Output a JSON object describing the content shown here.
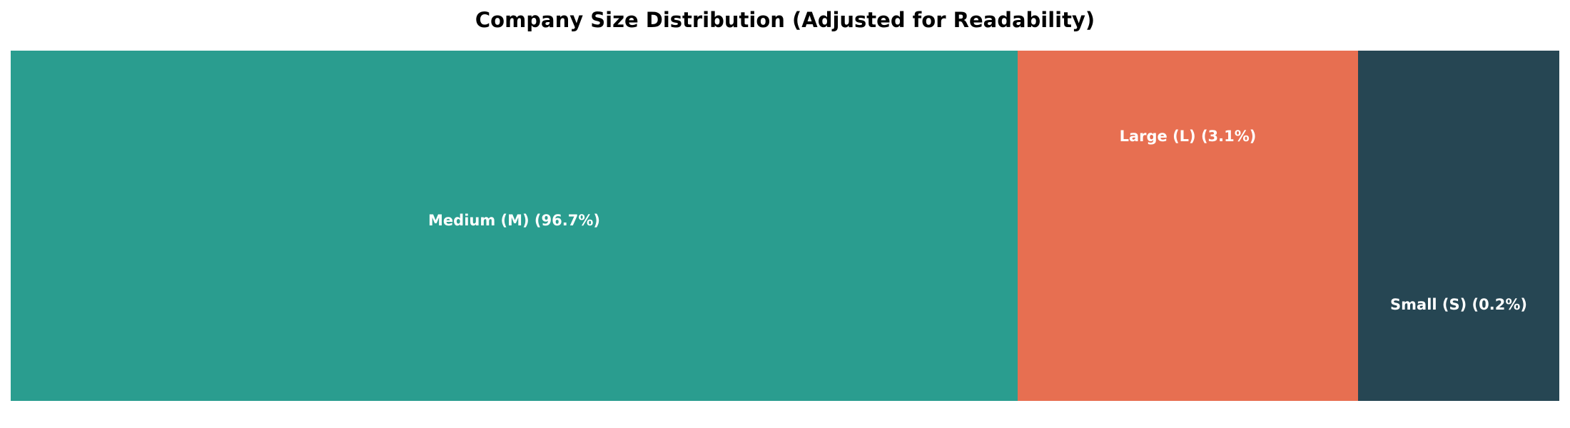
{
  "chart_data": {
    "type": "treemap",
    "title": "Company Size Distribution (Adjusted for Readability)",
    "segments": [
      {
        "name": "Medium (M)",
        "percent": 96.7,
        "label": "Medium (M) (96.7%)",
        "color": "#2a9d8f"
      },
      {
        "name": "Large (L)",
        "percent": 3.1,
        "label": "Large (L) (3.1%)",
        "color": "#e76f51"
      },
      {
        "name": "Small (S)",
        "percent": 0.2,
        "label": "Small (S) (0.2%)",
        "color": "#264653"
      }
    ],
    "display_widths_note": "Areas adjusted for readability; not proportional to percent"
  }
}
